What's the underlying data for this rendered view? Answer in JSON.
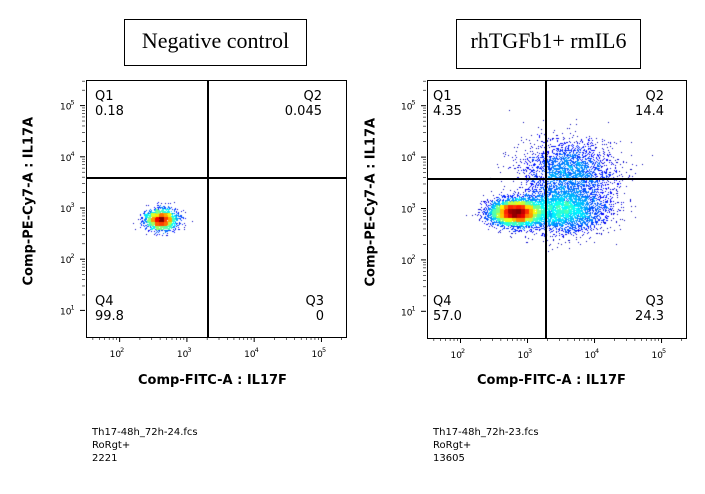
{
  "chart_data": [
    {
      "type": "scatter",
      "title": "Negative control",
      "xlabel": "Comp-FITC-A : IL17F",
      "ylabel": "Comp-PE-Cy7-A : IL17A",
      "xscale": "log",
      "yscale": "log",
      "x_ticks": [
        "10",
        "10",
        "10",
        "10"
      ],
      "x_tick_exponents": [
        "2",
        "3",
        "4",
        "5"
      ],
      "y_ticks": [
        "10",
        "10",
        "10",
        "10",
        "10"
      ],
      "y_tick_exponents": [
        "1",
        "2",
        "3",
        "4",
        "5"
      ],
      "quadrants": [
        {
          "name": "Q1",
          "percent": "0.18"
        },
        {
          "name": "Q2",
          "percent": "0.045"
        },
        {
          "name": "Q3",
          "percent": "0"
        },
        {
          "name": "Q4",
          "percent": "99.8"
        }
      ],
      "file_name": "Th17-48h_72h-24.fcs",
      "gate_name": "RoRgt+",
      "event_count": "2221",
      "population": {
        "clusters": [
          {
            "x_log_center": 2.6,
            "y_log_center": 2.8,
            "x_log_sd": 0.12,
            "y_log_sd": 0.1,
            "weight": 1.0
          }
        ]
      },
      "gate_x": 2000,
      "gate_y": 4000
    },
    {
      "type": "scatter",
      "title": "rhTGFb1+ rmIL6",
      "xlabel": "Comp-FITC-A : IL17F",
      "ylabel": "Comp-PE-Cy7-A : IL17A",
      "xscale": "log",
      "yscale": "log",
      "x_ticks": [
        "10",
        "10",
        "10",
        "10"
      ],
      "x_tick_exponents": [
        "2",
        "3",
        "4",
        "5"
      ],
      "y_ticks": [
        "10",
        "10",
        "10",
        "10",
        "10"
      ],
      "y_tick_exponents": [
        "1",
        "2",
        "3",
        "4",
        "5"
      ],
      "quadrants": [
        {
          "name": "Q1",
          "percent": "4.35"
        },
        {
          "name": "Q2",
          "percent": "14.4"
        },
        {
          "name": "Q3",
          "percent": "24.3"
        },
        {
          "name": "Q4",
          "percent": "57.0"
        }
      ],
      "file_name": "Th17-48h_72h-23.fcs",
      "gate_name": "RoRgt+",
      "event_count": "13605",
      "population": {
        "clusters": [
          {
            "x_log_center": 2.8,
            "y_log_center": 2.95,
            "x_log_sd": 0.18,
            "y_log_sd": 0.12,
            "weight": 0.5
          },
          {
            "x_log_center": 3.5,
            "y_log_center": 3.0,
            "x_log_sd": 0.32,
            "y_log_sd": 0.22,
            "weight": 0.3
          },
          {
            "x_log_center": 3.6,
            "y_log_center": 3.75,
            "x_log_sd": 0.35,
            "y_log_sd": 0.3,
            "weight": 0.2
          }
        ]
      },
      "gate_x": 1800,
      "gate_y": 4000
    }
  ]
}
